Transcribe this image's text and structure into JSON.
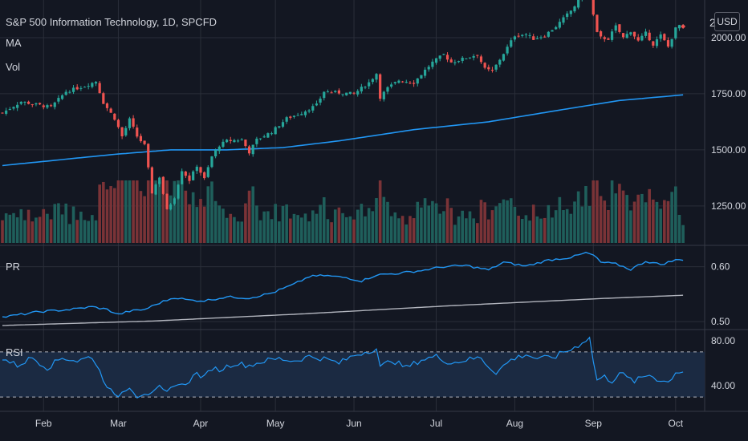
{
  "header": {
    "title": "S&P 500 Information Technology, 1D, SPCFD",
    "ma_label": "MA",
    "vol_label": "Vol",
    "currency": "USD",
    "price_axis_partial": "2"
  },
  "colors": {
    "background": "#131722",
    "up": "#26a69a",
    "down": "#ef5350",
    "up_vol": "#1f5f5b",
    "down_vol": "#7a3337",
    "ma": "#2196f3",
    "pr_line": "#2196f3",
    "pr_ma": "#b2b5be",
    "rsi_line": "#2196f3",
    "rsi_band": "#1b2a42",
    "grid": "#2a2e39",
    "text": "#d1d4dc"
  },
  "panes": {
    "pr_label": "PR",
    "rsi_label": "RSI"
  },
  "chart_data": [
    {
      "type": "candlestick",
      "title": "S&P 500 Information Technology, 1D, SPCFD",
      "y_ticks": [
        "2000.00",
        "1750.00",
        "1500.00",
        "1250.00"
      ],
      "y_tick_values": [
        2000,
        1750,
        1500,
        1250
      ],
      "ylim": [
        1085,
        2150
      ],
      "x_ticks": [
        "Feb",
        "Mar",
        "Apr",
        "May",
        "Jun",
        "Jul",
        "Aug",
        "Sep",
        "Oct"
      ],
      "x_tick_index": [
        11,
        31,
        53,
        73,
        94,
        116,
        137,
        158,
        180
      ],
      "price_anchors": [
        [
          0,
          1665
        ],
        [
          5,
          1715
        ],
        [
          8,
          1705
        ],
        [
          13,
          1690
        ],
        [
          17,
          1760
        ],
        [
          22,
          1785
        ],
        [
          25,
          1805
        ],
        [
          27,
          1710
        ],
        [
          30,
          1640
        ],
        [
          32,
          1560
        ],
        [
          34,
          1635
        ],
        [
          36,
          1560
        ],
        [
          38,
          1520
        ],
        [
          40,
          1310
        ],
        [
          42,
          1380
        ],
        [
          44,
          1230
        ],
        [
          46,
          1290
        ],
        [
          48,
          1410
        ],
        [
          50,
          1365
        ],
        [
          52,
          1430
        ],
        [
          54,
          1370
        ],
        [
          56,
          1470
        ],
        [
          58,
          1520
        ],
        [
          60,
          1540
        ],
        [
          64,
          1545
        ],
        [
          66,
          1490
        ],
        [
          68,
          1545
        ],
        [
          72,
          1580
        ],
        [
          76,
          1640
        ],
        [
          80,
          1665
        ],
        [
          84,
          1700
        ],
        [
          86,
          1760
        ],
        [
          90,
          1755
        ],
        [
          94,
          1750
        ],
        [
          98,
          1800
        ],
        [
          100,
          1840
        ],
        [
          101,
          1735
        ],
        [
          103,
          1775
        ],
        [
          106,
          1810
        ],
        [
          110,
          1800
        ],
        [
          113,
          1855
        ],
        [
          115,
          1890
        ],
        [
          118,
          1925
        ],
        [
          120,
          1890
        ],
        [
          123,
          1905
        ],
        [
          127,
          1925
        ],
        [
          129,
          1860
        ],
        [
          131,
          1850
        ],
        [
          134,
          1930
        ],
        [
          137,
          2010
        ],
        [
          140,
          2015
        ],
        [
          142,
          1995
        ],
        [
          145,
          2010
        ],
        [
          148,
          2050
        ],
        [
          152,
          2120
        ],
        [
          156,
          2205
        ],
        [
          157,
          2215
        ],
        [
          158,
          2100
        ],
        [
          159,
          2020
        ],
        [
          160,
          2000
        ],
        [
          162,
          1995
        ],
        [
          164,
          2050
        ],
        [
          166,
          2000
        ],
        [
          168,
          2030
        ],
        [
          170,
          1985
        ],
        [
          172,
          2020
        ],
        [
          174,
          1970
        ],
        [
          176,
          2010
        ],
        [
          178,
          1960
        ],
        [
          180,
          2040
        ],
        [
          181,
          2055
        ],
        [
          182,
          2050
        ]
      ],
      "ma": {
        "start": 1430,
        "pts": [
          [
            0,
            1430
          ],
          [
            30,
            1480
          ],
          [
            45,
            1500
          ],
          [
            60,
            1500
          ],
          [
            75,
            1510
          ],
          [
            90,
            1540
          ],
          [
            110,
            1590
          ],
          [
            130,
            1625
          ],
          [
            150,
            1680
          ],
          [
            165,
            1720
          ],
          [
            182,
            1745
          ]
        ]
      }
    },
    {
      "type": "line",
      "name_label": "PR",
      "y_ticks": [
        "0.60",
        "0.50"
      ],
      "y_tick_values": [
        0.6,
        0.5
      ],
      "ylim": [
        0.487,
        0.633
      ],
      "line_anchors": [
        [
          0,
          0.508
        ],
        [
          10,
          0.518
        ],
        [
          18,
          0.522
        ],
        [
          24,
          0.527
        ],
        [
          28,
          0.522
        ],
        [
          31,
          0.513
        ],
        [
          34,
          0.519
        ],
        [
          38,
          0.522
        ],
        [
          42,
          0.534
        ],
        [
          46,
          0.544
        ],
        [
          50,
          0.539
        ],
        [
          54,
          0.538
        ],
        [
          60,
          0.545
        ],
        [
          66,
          0.543
        ],
        [
          72,
          0.552
        ],
        [
          78,
          0.568
        ],
        [
          82,
          0.582
        ],
        [
          86,
          0.584
        ],
        [
          92,
          0.58
        ],
        [
          96,
          0.574
        ],
        [
          100,
          0.585
        ],
        [
          106,
          0.588
        ],
        [
          112,
          0.593
        ],
        [
          118,
          0.6
        ],
        [
          124,
          0.602
        ],
        [
          130,
          0.594
        ],
        [
          134,
          0.608
        ],
        [
          140,
          0.601
        ],
        [
          146,
          0.612
        ],
        [
          152,
          0.617
        ],
        [
          156,
          0.625
        ],
        [
          158,
          0.621
        ],
        [
          160,
          0.608
        ],
        [
          164,
          0.605
        ],
        [
          168,
          0.595
        ],
        [
          172,
          0.61
        ],
        [
          176,
          0.604
        ],
        [
          180,
          0.612
        ],
        [
          182,
          0.613
        ]
      ],
      "ma_anchors": [
        [
          0,
          0.493
        ],
        [
          40,
          0.501
        ],
        [
          80,
          0.514
        ],
        [
          120,
          0.529
        ],
        [
          160,
          0.542
        ],
        [
          182,
          0.548
        ]
      ]
    },
    {
      "type": "line",
      "name_label": "RSI",
      "y_ticks": [
        "80.00",
        "40.00"
      ],
      "y_tick_values": [
        80,
        40
      ],
      "ylim": [
        23,
        87
      ],
      "bands": [
        70,
        30
      ],
      "line_anchors": [
        [
          0,
          64
        ],
        [
          4,
          58
        ],
        [
          8,
          65
        ],
        [
          12,
          56
        ],
        [
          16,
          65
        ],
        [
          20,
          62
        ],
        [
          24,
          66
        ],
        [
          27,
          46
        ],
        [
          30,
          30
        ],
        [
          32,
          34
        ],
        [
          34,
          40
        ],
        [
          36,
          31
        ],
        [
          38,
          34
        ],
        [
          40,
          32
        ],
        [
          42,
          38
        ],
        [
          44,
          33
        ],
        [
          46,
          42
        ],
        [
          48,
          40
        ],
        [
          50,
          45
        ],
        [
          52,
          51
        ],
        [
          54,
          47
        ],
        [
          56,
          56
        ],
        [
          58,
          54
        ],
        [
          62,
          60
        ],
        [
          66,
          58
        ],
        [
          70,
          62
        ],
        [
          74,
          64
        ],
        [
          78,
          62
        ],
        [
          82,
          66
        ],
        [
          86,
          64
        ],
        [
          90,
          60
        ],
        [
          94,
          67
        ],
        [
          98,
          71
        ],
        [
          100,
          73
        ],
        [
          101,
          56
        ],
        [
          104,
          63
        ],
        [
          108,
          56
        ],
        [
          112,
          63
        ],
        [
          116,
          66
        ],
        [
          120,
          60
        ],
        [
          124,
          63
        ],
        [
          128,
          65
        ],
        [
          130,
          57
        ],
        [
          132,
          52
        ],
        [
          136,
          63
        ],
        [
          140,
          68
        ],
        [
          142,
          65
        ],
        [
          144,
          64
        ],
        [
          148,
          66
        ],
        [
          150,
          70
        ],
        [
          152,
          72
        ],
        [
          154,
          76
        ],
        [
          156,
          81
        ],
        [
          157,
          82
        ],
        [
          158,
          62
        ],
        [
          159,
          45
        ],
        [
          161,
          48
        ],
        [
          163,
          44
        ],
        [
          165,
          52
        ],
        [
          167,
          47
        ],
        [
          169,
          44
        ],
        [
          171,
          47
        ],
        [
          173,
          50
        ],
        [
          175,
          46
        ],
        [
          178,
          43
        ],
        [
          180,
          52
        ],
        [
          182,
          53
        ]
      ]
    }
  ]
}
